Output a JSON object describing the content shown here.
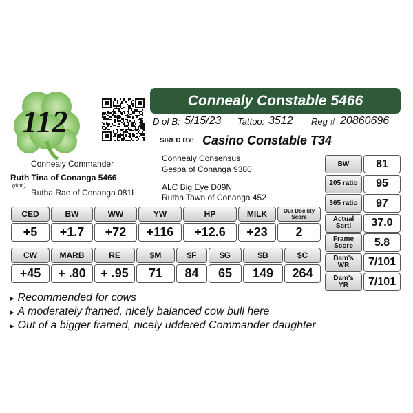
{
  "logo": {
    "number": "112"
  },
  "header": {
    "title": "Connealy Constable 5466",
    "dob_label": "D of B:",
    "dob": "5/15/23",
    "tattoo_label": "Tattoo:",
    "tattoo": "3512",
    "reg_label": "Reg #",
    "reg": "20860696",
    "sired_label": "SIRED BY:",
    "sire": "Casino Constable T34"
  },
  "pedigree": {
    "dam_sire": "Connealy Commander",
    "dam": "Ruth Tina of Conanga 5466",
    "dam_tag": "(dam)",
    "dam_dam": "Rutha Rae of Conanga 081L",
    "sire_line": [
      "Connealy Consensus",
      "Gespa of Conanga 9380",
      "ALC Big Eye D09N",
      "Rutha Tawn of Conanga 452"
    ]
  },
  "epd_table_1": {
    "headers": [
      "CED",
      "BW",
      "WW",
      "YW",
      "HP",
      "MILK",
      "Our Docility Score"
    ],
    "values": [
      "+5",
      "+1.7",
      "+72",
      "+116",
      "+12.6",
      "+23",
      "2"
    ]
  },
  "epd_table_2": {
    "headers": [
      "CW",
      "MARB",
      "RE",
      "$M",
      "$F",
      "$G",
      "$B",
      "$C"
    ],
    "values": [
      "+45",
      "+ .80",
      "+ .95",
      "71",
      "84",
      "65",
      "149",
      "264"
    ]
  },
  "side_table": {
    "rows": [
      [
        "BW",
        "81"
      ],
      [
        "205 ratio",
        "95"
      ],
      [
        "365 ratio",
        "97"
      ],
      [
        "Actual Scrtl",
        "37.0"
      ],
      [
        "Frame Score",
        "5.8"
      ],
      [
        "Dam's WR",
        "7/101"
      ],
      [
        "Dam's YR",
        "7/101"
      ]
    ]
  },
  "notes": [
    "Recommended for cows",
    "A moderately framed, nicely balanced cow bull here",
    "Out of a bigger framed, nicely uddered Commander daughter"
  ]
}
